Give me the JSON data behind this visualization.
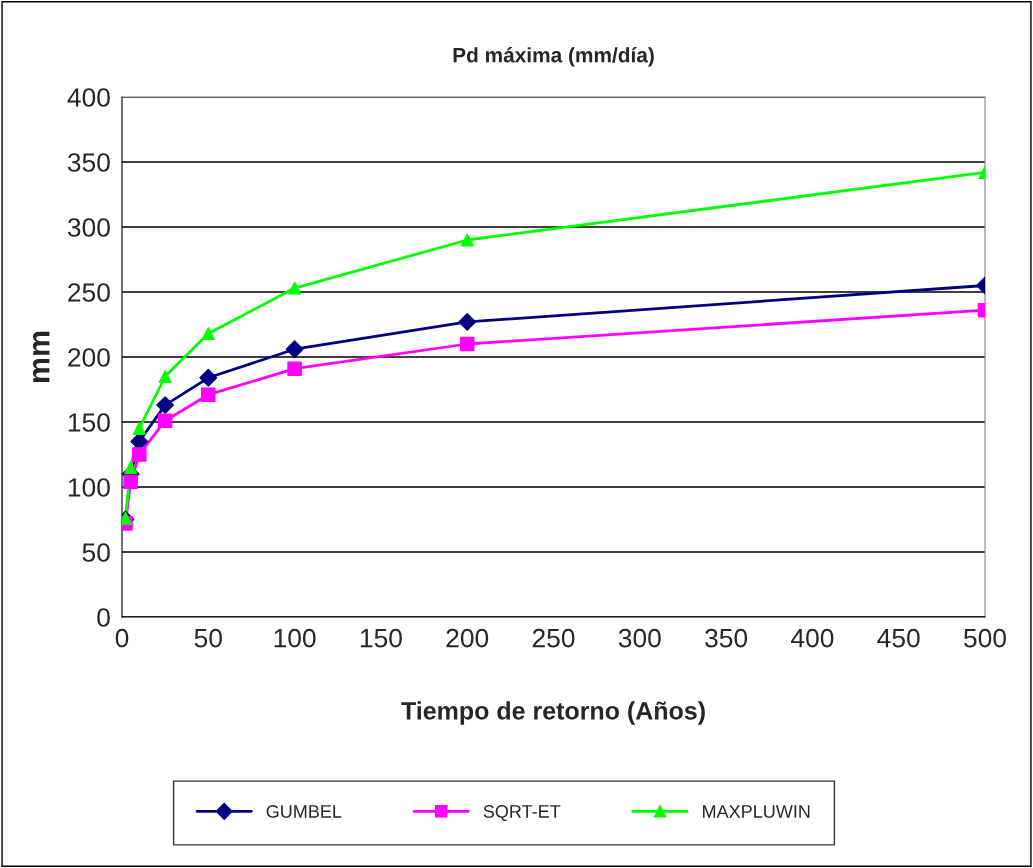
{
  "chart_data": {
    "type": "line",
    "title": "Pd máxima (mm/día)",
    "xlabel": "Tiempo de retorno (Años)",
    "ylabel": "mm",
    "x": [
      2,
      5,
      10,
      25,
      50,
      100,
      200,
      500
    ],
    "series": [
      {
        "name": "GUMBEL",
        "color": "#000080",
        "marker": "diamond",
        "values": [
          75,
          110,
          135,
          163,
          184,
          206,
          227,
          255
        ]
      },
      {
        "name": "SQRT-ET",
        "color": "#ff00ff",
        "marker": "square",
        "values": [
          72,
          104,
          125,
          151,
          171,
          191,
          210,
          236
        ]
      },
      {
        "name": "MAXPLUWIN",
        "color": "#00ff00",
        "marker": "triangle",
        "values": [
          76,
          115,
          145,
          185,
          218,
          253,
          290,
          342
        ]
      }
    ],
    "xlim": [
      0,
      500
    ],
    "xticks": [
      0,
      50,
      100,
      150,
      200,
      250,
      300,
      350,
      400,
      450,
      500
    ],
    "ylim": [
      0,
      400
    ],
    "yticks": [
      0,
      50,
      100,
      150,
      200,
      250,
      300,
      350,
      400
    ],
    "grid": "y",
    "legend": "bottom",
    "line_style": "solid"
  }
}
